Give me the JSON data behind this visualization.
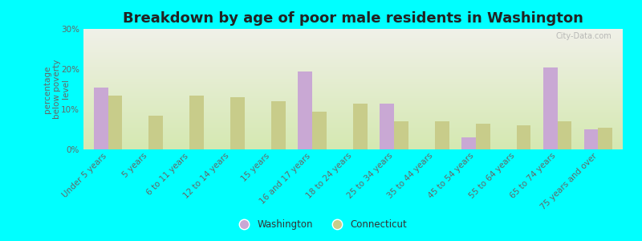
{
  "title": "Breakdown by age of poor male residents in Washington",
  "ylabel": "percentage\nbelow poverty\nlevel",
  "categories": [
    "Under 5 years",
    "5 years",
    "6 to 11 years",
    "12 to 14 years",
    "15 years",
    "16 and 17 years",
    "18 to 24 years",
    "25 to 34 years",
    "35 to 44 years",
    "45 to 54 years",
    "55 to 64 years",
    "65 to 74 years",
    "75 years and over"
  ],
  "washington": [
    15.5,
    0,
    0,
    0,
    0,
    19.5,
    0,
    11.5,
    0,
    3.0,
    0,
    20.5,
    5.0
  ],
  "connecticut": [
    13.5,
    8.5,
    13.5,
    13.0,
    12.0,
    9.5,
    11.5,
    7.0,
    7.0,
    6.5,
    6.0,
    7.0,
    5.5
  ],
  "washington_color": "#c9a8d4",
  "connecticut_color": "#c8cc8a",
  "bg_color": "#00ffff",
  "plot_bg_top": "#f0f0e8",
  "plot_bg_bottom": "#d4e8b0",
  "ylim": [
    0,
    30
  ],
  "yticks": [
    0,
    10,
    20,
    30
  ],
  "ytick_labels": [
    "0%",
    "10%",
    "20%",
    "30%"
  ],
  "bar_width": 0.35,
  "legend_washington": "Washington",
  "legend_connecticut": "Connecticut",
  "watermark": "City-Data.com",
  "title_fontsize": 13,
  "tick_fontsize": 7.5,
  "ylabel_fontsize": 7.5
}
